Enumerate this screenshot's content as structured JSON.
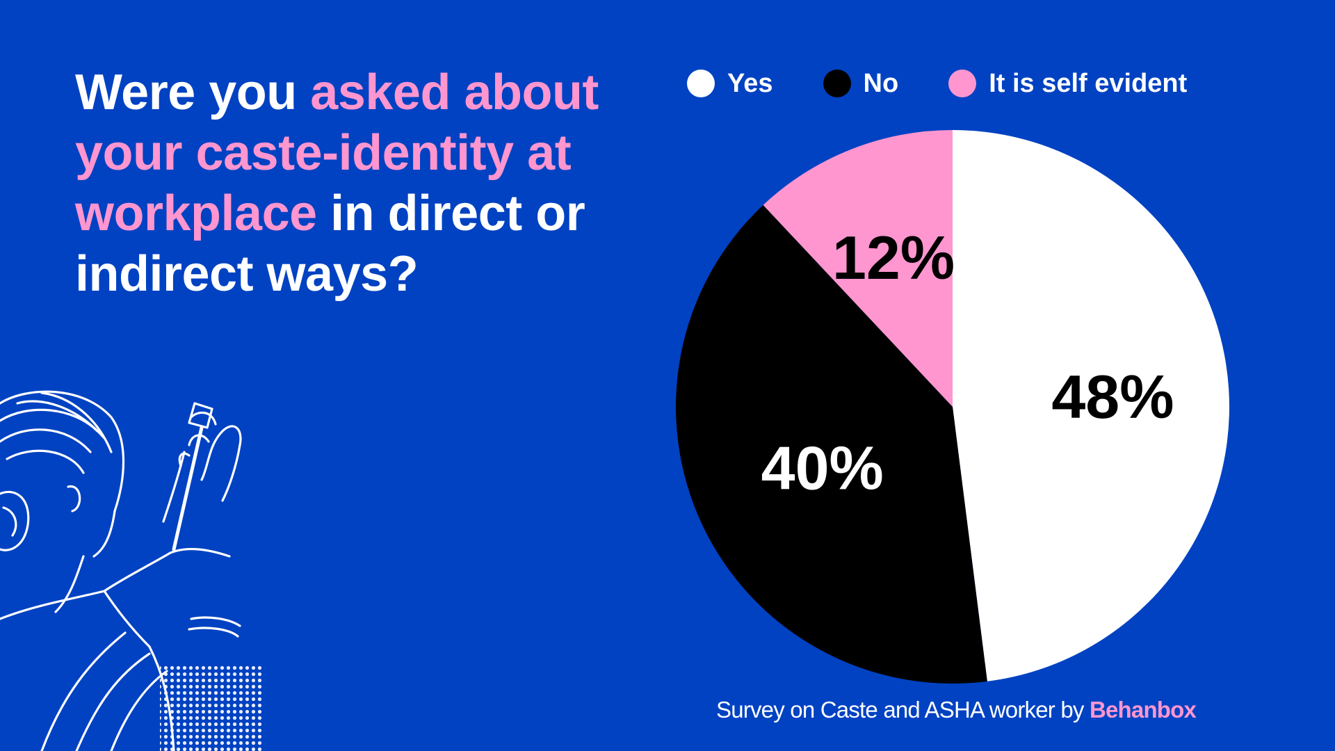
{
  "title": {
    "part1": "Were you ",
    "part2": "asked about your caste-identity at workplace",
    "part3": " in direct or indirect ways?"
  },
  "legend": [
    {
      "label": "Yes",
      "color": "#ffffff"
    },
    {
      "label": "No",
      "color": "#000000"
    },
    {
      "label": "It is self evident",
      "color": "#ff96cf"
    }
  ],
  "chart_data": {
    "type": "pie",
    "title": "Were you asked about your caste-identity at workplace in direct or indirect ways?",
    "slices": [
      {
        "label": "Yes",
        "value": 48,
        "display": "48%",
        "color": "#ffffff",
        "text_color": "#000000"
      },
      {
        "label": "No",
        "value": 40,
        "display": "40%",
        "color": "#000000",
        "text_color": "#ffffff"
      },
      {
        "label": "It is self evident",
        "value": 12,
        "display": "12%",
        "color": "#ff96cf",
        "text_color": "#000000"
      }
    ],
    "legend_position": "top"
  },
  "source": {
    "text": "Survey on Caste and ASHA worker by ",
    "brand": "Behanbox"
  },
  "colors": {
    "background": "#0042c2",
    "accent": "#ff96cf"
  }
}
